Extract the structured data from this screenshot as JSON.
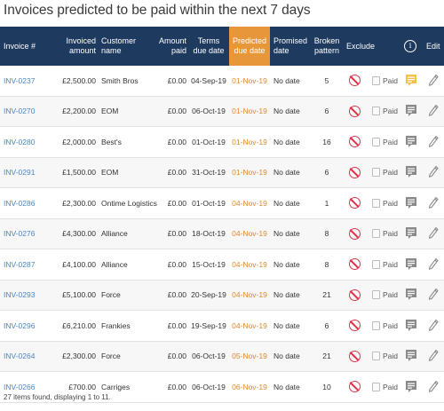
{
  "page": {
    "title": "Invoices predicted to be paid within the next 7 days",
    "footer": "27 items found, displaying 1 to 11."
  },
  "columns": {
    "invoice": "Invoice #",
    "invoiced_amount": "Invoiced amount",
    "customer": "Customer name",
    "amount_paid": "Amount paid",
    "terms_due": "Terms due date",
    "predicted_due": "Predicted due date",
    "promised": "Promised date",
    "broken": "Broken pattern",
    "exclude": "Exclude",
    "info": "i",
    "edit": "Edit"
  },
  "paid_label": "Paid",
  "colors": {
    "header_bg": "#1f3a5f",
    "predicted_header_bg": "#e8963a",
    "invoice_link": "#4a86c8",
    "predicted_text": "#e08a2e",
    "exclude_icon": "#d9344a",
    "note_active": "#f2c14a",
    "note_inactive": "#8a8a8a"
  },
  "rows": [
    {
      "invoice": "INV-0237",
      "amount": "£2,500.00",
      "customer": "Smith Bros",
      "paid": "£0.00",
      "terms": "04-Sep-19",
      "predicted": "01-Nov-19",
      "promised": "No date",
      "broken": "5",
      "note_active": true
    },
    {
      "invoice": "INV-0270",
      "amount": "£2,200.00",
      "customer": "EOM",
      "paid": "£0.00",
      "terms": "06-Oct-19",
      "predicted": "01-Nov-19",
      "promised": "No date",
      "broken": "6",
      "note_active": false
    },
    {
      "invoice": "INV-0280",
      "amount": "£2,000.00",
      "customer": "Best's",
      "paid": "£0.00",
      "terms": "01-Oct-19",
      "predicted": "01-Nov-19",
      "promised": "No date",
      "broken": "16",
      "note_active": false
    },
    {
      "invoice": "INV-0291",
      "amount": "£1,500.00",
      "customer": "EOM",
      "paid": "£0.00",
      "terms": "31-Oct-19",
      "predicted": "01-Nov-19",
      "promised": "No date",
      "broken": "6",
      "note_active": false
    },
    {
      "invoice": "INV-0286",
      "amount": "£2,300.00",
      "customer": "Ontime Logistics",
      "paid": "£0.00",
      "terms": "01-Oct-19",
      "predicted": "04-Nov-19",
      "promised": "No date",
      "broken": "1",
      "note_active": false
    },
    {
      "invoice": "INV-0276",
      "amount": "£4,300.00",
      "customer": "Alliance",
      "paid": "£0.00",
      "terms": "18-Oct-19",
      "predicted": "04-Nov-19",
      "promised": "No date",
      "broken": "8",
      "note_active": false
    },
    {
      "invoice": "INV-0287",
      "amount": "£4,100.00",
      "customer": "Alliance",
      "paid": "£0.00",
      "terms": "15-Oct-19",
      "predicted": "04-Nov-19",
      "promised": "No date",
      "broken": "8",
      "note_active": false
    },
    {
      "invoice": "INV-0293",
      "amount": "£5,100.00",
      "customer": "Force",
      "paid": "£0.00",
      "terms": "20-Sep-19",
      "predicted": "04-Nov-19",
      "promised": "No date",
      "broken": "21",
      "note_active": false
    },
    {
      "invoice": "INV-0296",
      "amount": "£6,210.00",
      "customer": "Frankies",
      "paid": "£0.00",
      "terms": "19-Sep-19",
      "predicted": "04-Nov-19",
      "promised": "No date",
      "broken": "6",
      "note_active": false
    },
    {
      "invoice": "INV-0264",
      "amount": "£2,300.00",
      "customer": "Force",
      "paid": "£0.00",
      "terms": "06-Oct-19",
      "predicted": "05-Nov-19",
      "promised": "No date",
      "broken": "21",
      "note_active": false
    },
    {
      "invoice": "INV-0266",
      "amount": "£700.00",
      "customer": "Carriges",
      "paid": "£0.00",
      "terms": "06-Oct-19",
      "predicted": "06-Nov-19",
      "promised": "No date",
      "broken": "10",
      "note_active": false
    }
  ]
}
